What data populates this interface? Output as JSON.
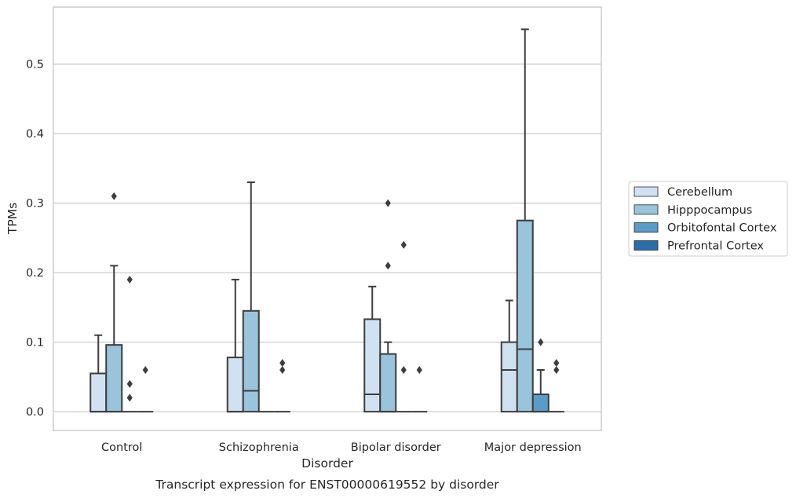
{
  "chart_data": {
    "type": "box",
    "caption": "Transcript expression for ENST00000619552 by disorder",
    "xlabel": "Disorder",
    "ylabel": "TPMs",
    "ylim": [
      -0.027,
      0.582
    ],
    "yticks": [
      "0.0",
      "0.1",
      "0.2",
      "0.3",
      "0.4",
      "0.5"
    ],
    "grid": true,
    "legend_position": "right",
    "categories": [
      "Control",
      "Schizophrenia",
      "Bipolar disorder",
      "Major depression"
    ],
    "series": [
      {
        "name": "Cerebellum",
        "color": "#d0e1f2",
        "boxes": [
          {
            "q1": 0,
            "median": 0,
            "q3": 0.055,
            "whislo": 0,
            "whishi": 0.11,
            "fliers": []
          },
          {
            "q1": 0,
            "median": 0,
            "q3": 0.078,
            "whislo": 0,
            "whishi": 0.19,
            "fliers": []
          },
          {
            "q1": 0,
            "median": 0.025,
            "q3": 0.133,
            "whislo": 0,
            "whishi": 0.18,
            "fliers": []
          },
          {
            "q1": 0,
            "median": 0.06,
            "q3": 0.1,
            "whislo": 0,
            "whishi": 0.16,
            "fliers": []
          }
        ]
      },
      {
        "name": "Hipppocampus",
        "color": "#9ac3dc",
        "boxes": [
          {
            "q1": 0,
            "median": 0,
            "q3": 0.096,
            "whislo": 0,
            "whishi": 0.21,
            "fliers": [
              0.31
            ]
          },
          {
            "q1": 0,
            "median": 0.03,
            "q3": 0.145,
            "whislo": 0,
            "whishi": 0.33,
            "fliers": []
          },
          {
            "q1": 0,
            "median": 0,
            "q3": 0.083,
            "whislo": 0,
            "whishi": 0.1,
            "fliers": [
              0.21,
              0.3
            ]
          },
          {
            "q1": 0,
            "median": 0.09,
            "q3": 0.275,
            "whislo": 0,
            "whishi": 0.55,
            "fliers": []
          }
        ]
      },
      {
        "name": "Orbitofontal Cortex",
        "color": "#5a9bc7",
        "boxes": [
          {
            "q1": 0,
            "median": 0,
            "q3": 0,
            "whislo": 0,
            "whishi": 0,
            "fliers": [
              0.02,
              0.04,
              0.19
            ]
          },
          {
            "q1": 0,
            "median": 0,
            "q3": 0,
            "whislo": 0,
            "whishi": 0,
            "fliers": []
          },
          {
            "q1": 0,
            "median": 0,
            "q3": 0,
            "whislo": 0,
            "whishi": 0,
            "fliers": [
              0.06,
              0.24
            ]
          },
          {
            "q1": 0,
            "median": 0,
            "q3": 0.025,
            "whislo": 0,
            "whishi": 0.06,
            "fliers": [
              0.1
            ]
          }
        ]
      },
      {
        "name": "Prefrontal Cortex",
        "color": "#2b6da8",
        "boxes": [
          {
            "q1": 0,
            "median": 0,
            "q3": 0,
            "whislo": 0,
            "whishi": 0,
            "fliers": [
              0.06
            ]
          },
          {
            "q1": 0,
            "median": 0,
            "q3": 0,
            "whislo": 0,
            "whishi": 0,
            "fliers": [
              0.06,
              0.07
            ]
          },
          {
            "q1": 0,
            "median": 0,
            "q3": 0,
            "whislo": 0,
            "whishi": 0,
            "fliers": [
              0.06
            ]
          },
          {
            "q1": 0,
            "median": 0,
            "q3": 0,
            "whislo": 0,
            "whishi": 0,
            "fliers": [
              0.06,
              0.07
            ]
          }
        ]
      }
    ],
    "colors": {
      "grid": "#cccccc",
      "frame": "#cccccc",
      "line": "#3d3d3d",
      "text": "#262626"
    }
  }
}
